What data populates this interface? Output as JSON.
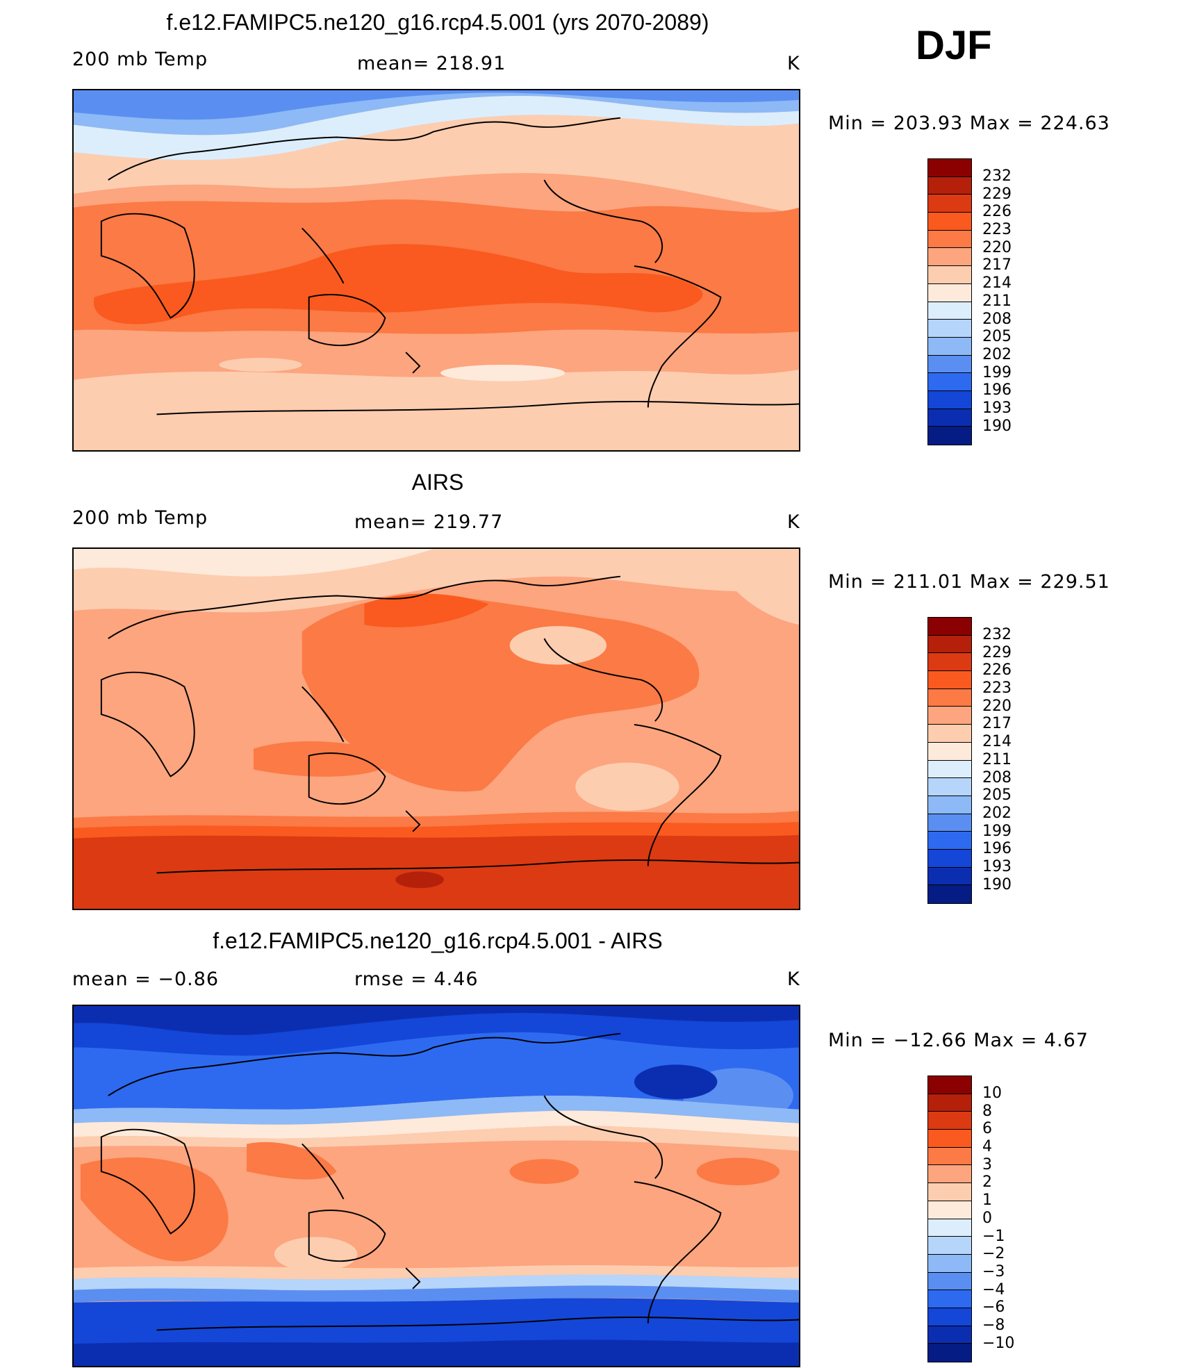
{
  "season": "DJF",
  "panels": [
    {
      "title": "f.e12.FAMIPC5.ne120_g16.rcp4.5.001 (yrs 2070-2089)",
      "left_label": "200 mb Temp",
      "center_label": "mean=  218.91",
      "units": "K",
      "minmax": "Min  =  203.93  Max  =  224.63",
      "map": "model-temperature-field",
      "legend_colors": [
        "#8b0000",
        "#b5200b",
        "#dc3a12",
        "#fa5a1f",
        "#fb7a45",
        "#fca57e",
        "#fdcdb0",
        "#feeadb",
        "#dceefc",
        "#b6d5fa",
        "#8db9f6",
        "#5a8ff1",
        "#2d6af0",
        "#1446d8",
        "#0b2eb1",
        "#041c83"
      ],
      "legend_labels": [
        "232",
        "229",
        "226",
        "223",
        "220",
        "217",
        "214",
        "211",
        "208",
        "205",
        "202",
        "199",
        "196",
        "193",
        "190"
      ]
    },
    {
      "title": "AIRS",
      "left_label": "200 mb Temp",
      "center_label": "mean=  219.77",
      "units": "K",
      "minmax": "Min  =  211.01  Max  =  229.51",
      "map": "airs-temperature-field",
      "legend_colors": [
        "#8b0000",
        "#b5200b",
        "#dc3a12",
        "#fa5a1f",
        "#fb7a45",
        "#fca57e",
        "#fdcdb0",
        "#feeadb",
        "#dceefc",
        "#b6d5fa",
        "#8db9f6",
        "#5a8ff1",
        "#2d6af0",
        "#1446d8",
        "#0b2eb1",
        "#041c83"
      ],
      "legend_labels": [
        "232",
        "229",
        "226",
        "223",
        "220",
        "217",
        "214",
        "211",
        "208",
        "205",
        "202",
        "199",
        "196",
        "193",
        "190"
      ]
    },
    {
      "title": "f.e12.FAMIPC5.ne120_g16.rcp4.5.001 - AIRS",
      "left_label": "mean  =     −0.86",
      "center_label": "rmse  =     4.46",
      "units": "K",
      "minmax": "Min  =  −12.66  Max  =      4.67",
      "map": "difference-field",
      "legend_colors": [
        "#8b0000",
        "#b5200b",
        "#dc3a12",
        "#fa5a1f",
        "#fb7a45",
        "#fca57e",
        "#fdcdb0",
        "#feeadb",
        "#dceefc",
        "#b6d5fa",
        "#8db9f6",
        "#5a8ff1",
        "#2d6af0",
        "#1446d8",
        "#0b2eb1",
        "#041c83"
      ],
      "legend_labels": [
        "10",
        "8",
        "6",
        "4",
        "3",
        "2",
        "1",
        "0",
        "−1",
        "−2",
        "−3",
        "−4",
        "−6",
        "−8",
        "−10"
      ]
    }
  ]
}
